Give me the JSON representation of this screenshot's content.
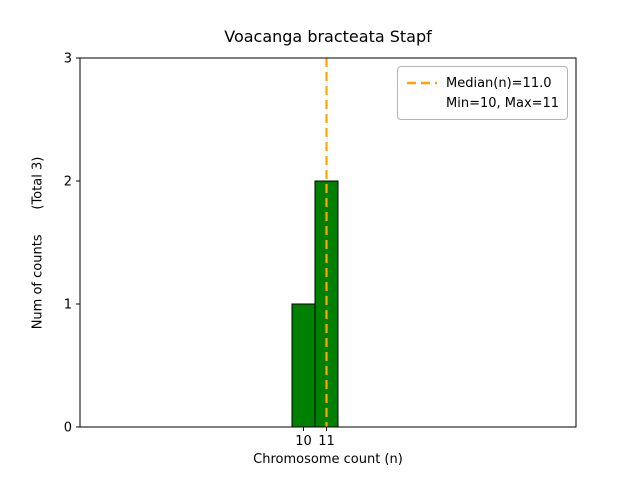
{
  "chart_data": {
    "type": "bar",
    "title": "Voacanga bracteata Stapf",
    "xlabel": "Chromosome count (n)",
    "ylabel": "Num of counts      (Total 3)",
    "categories": [
      "10",
      "11"
    ],
    "values": [
      1,
      2
    ],
    "ylim": [
      0,
      3
    ],
    "yticks": [
      "0",
      "1",
      "2",
      "3"
    ],
    "median": 11.0,
    "grid": false,
    "legend_position": "upper right",
    "legend": {
      "median_label": "Median(n)=11.0",
      "minmax_label": "Min=10, Max=11"
    },
    "colors": {
      "bar_fill": "#008000",
      "bar_edge": "#000000",
      "median_line": "#ffa500",
      "axis": "#000000"
    }
  }
}
